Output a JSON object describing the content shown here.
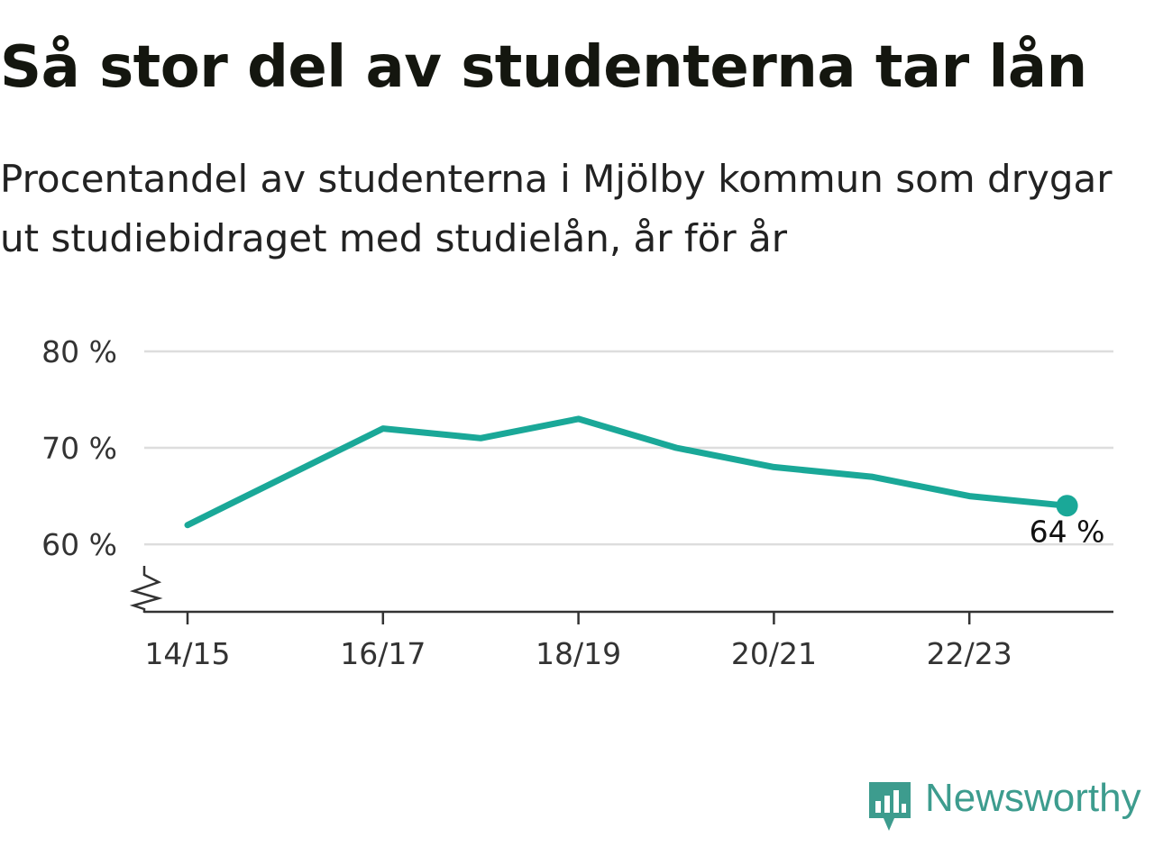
{
  "title": "Så stor del av studenterna tar lån",
  "subtitle": "Procentandel av studenterna i Mjölby kommun som drygar ut studiebidraget med studielån, år för år",
  "brand": {
    "name": "Newsworthy",
    "color": "#3d9c8e",
    "icon": "newsworthy-logo-icon"
  },
  "colors": {
    "line": "#1aa898",
    "grid": "#dddddd",
    "axis": "#333333"
  },
  "chart_data": {
    "type": "line",
    "title": "Så stor del av studenterna tar lån",
    "x": [
      "14/15",
      "15/16",
      "16/17",
      "17/18",
      "18/19",
      "19/20",
      "20/21",
      "21/22",
      "22/23",
      "23/24"
    ],
    "series": [
      {
        "values": [
          62,
          67,
          72,
          71,
          73,
          70,
          68,
          67,
          65,
          64
        ]
      }
    ],
    "x_tick_labels": [
      "14/15",
      "16/17",
      "18/19",
      "20/21",
      "22/23"
    ],
    "y_ticks": [
      60,
      70,
      80
    ],
    "y_tick_labels": [
      "60 %",
      "70 %",
      "80 %"
    ],
    "ylim": [
      53,
      80
    ],
    "y_axis_break": true,
    "grid": true,
    "legend": "none",
    "end_label": "64 %"
  }
}
